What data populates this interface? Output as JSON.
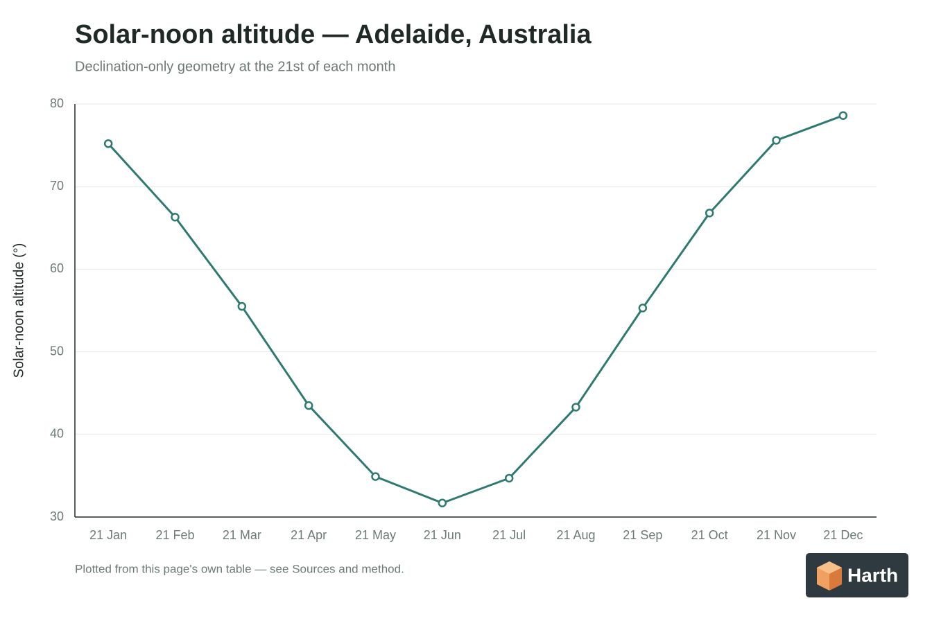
{
  "chart_data": {
    "type": "line",
    "title": "Solar-noon altitude — Adelaide, Australia",
    "subtitle": "Declination-only geometry at the 21st of each month",
    "y_label": "Solar-noon altitude (°)",
    "categories": [
      "21 Jan",
      "21 Feb",
      "21 Mar",
      "21 Apr",
      "21 May",
      "21 Jun",
      "21 Jul",
      "21 Aug",
      "21 Sep",
      "21 Oct",
      "21 Nov",
      "21 Dec"
    ],
    "values": [
      75.2,
      66.3,
      55.5,
      43.5,
      34.9,
      31.7,
      34.7,
      43.3,
      55.3,
      66.8,
      75.6,
      78.6
    ],
    "color": "#2e7a70",
    "ylim": [
      30,
      80
    ],
    "yticks": [
      30,
      40,
      50,
      60,
      70,
      80
    ],
    "grid": true,
    "footnote": "Plotted from this page's own table — see Sources and method.",
    "brand": "Harth"
  }
}
